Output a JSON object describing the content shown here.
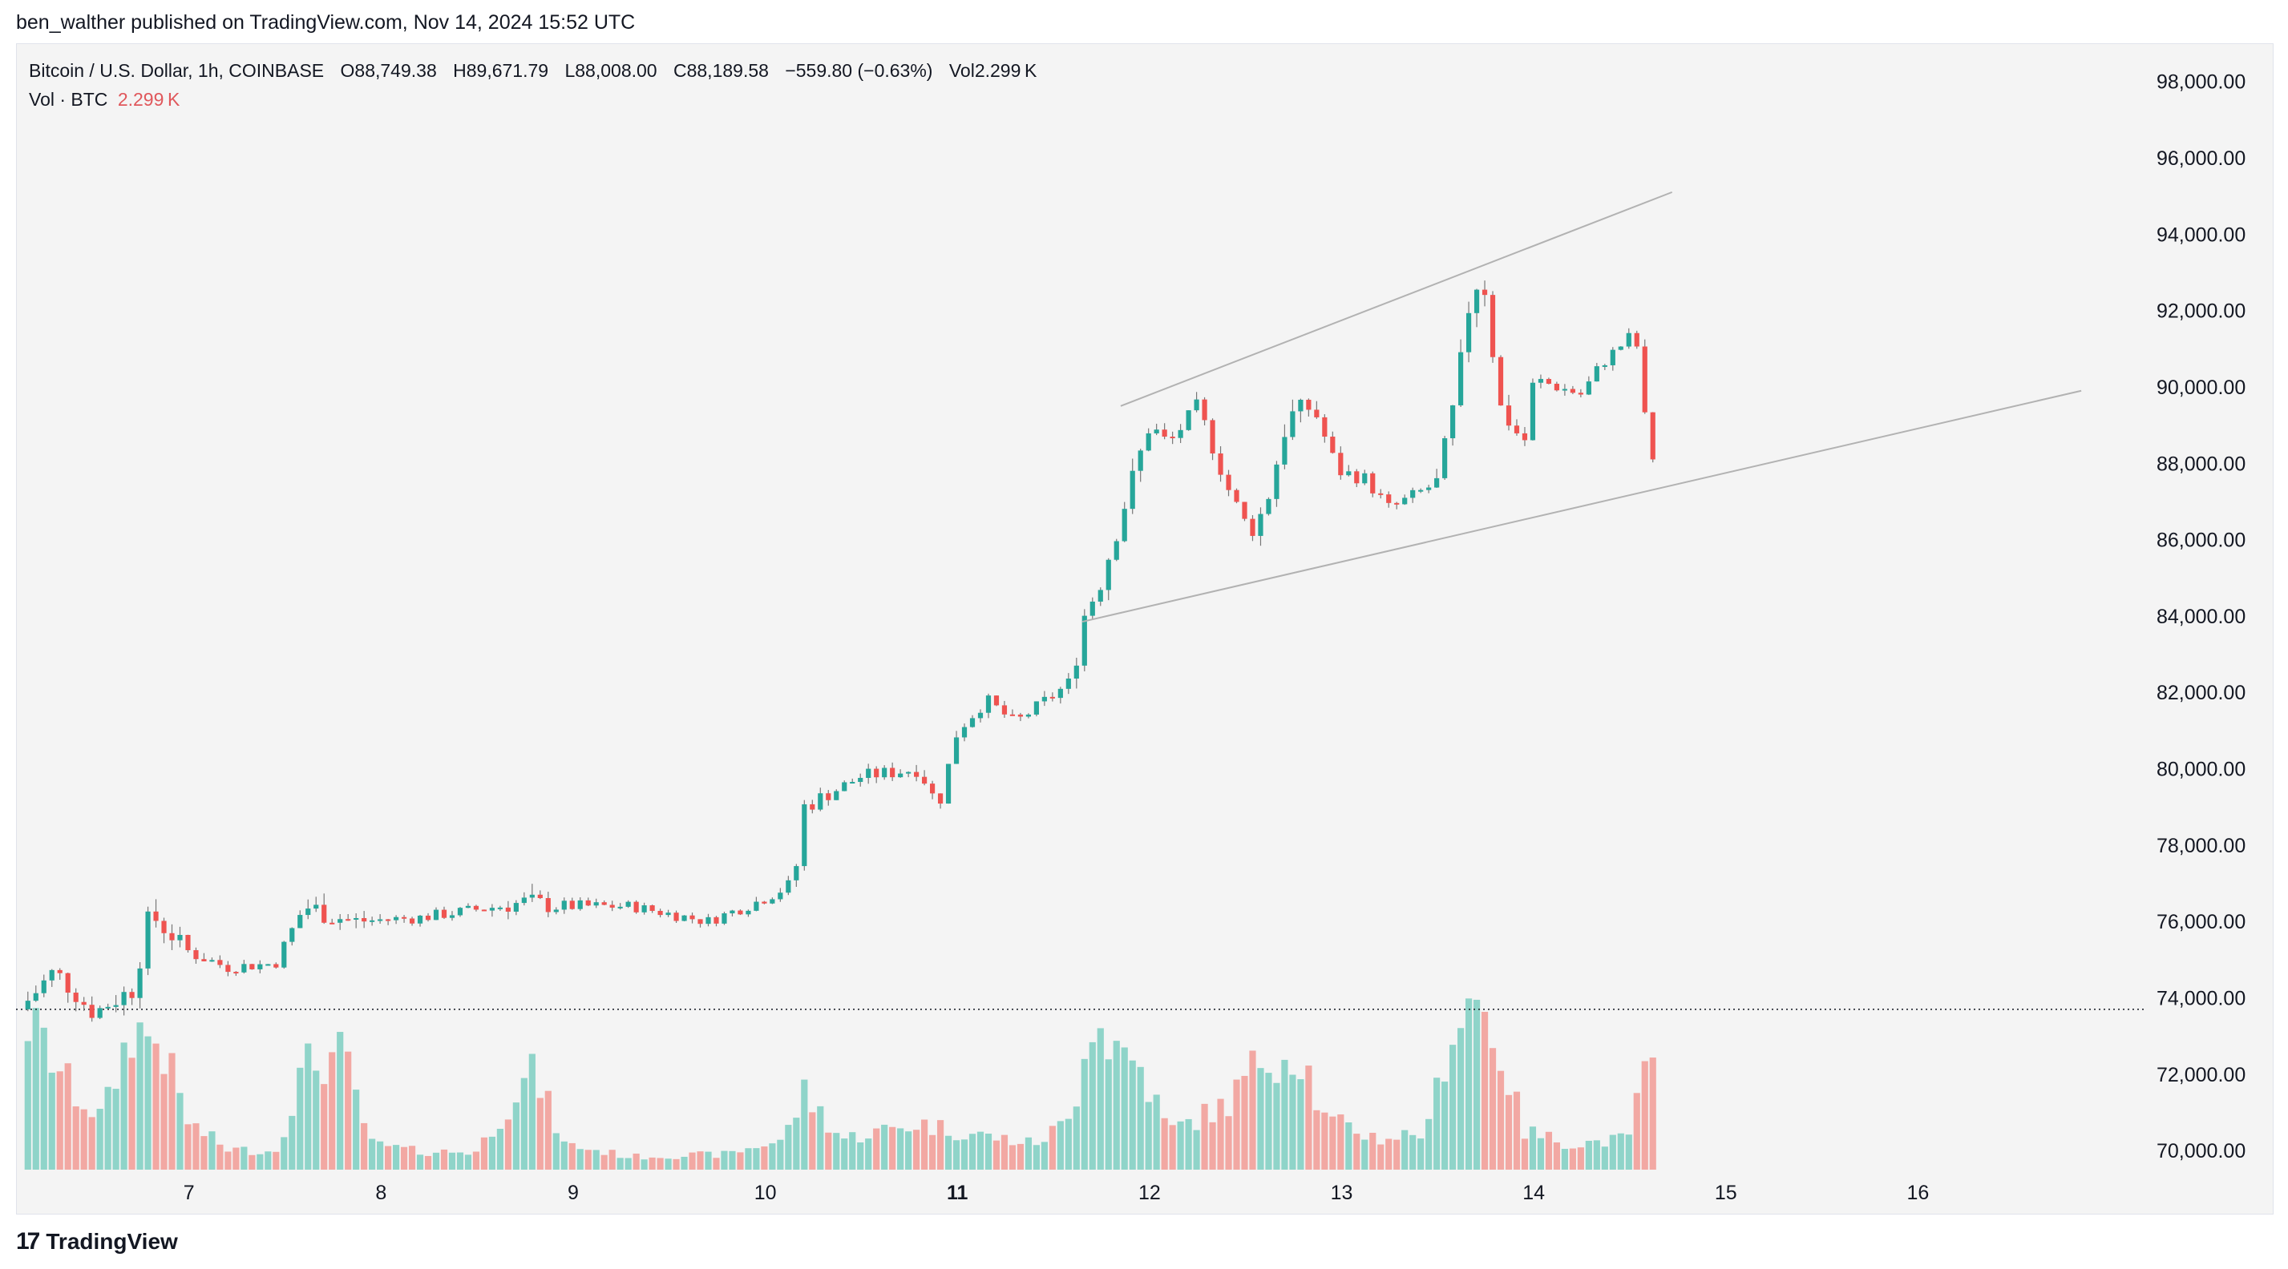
{
  "publisher_line": "ben_walther published on TradingView.com, Nov 14, 2024 15:52 UTC",
  "legend": {
    "symbol": "Bitcoin / U.S. Dollar, 1h, COINBASE",
    "open": "O88,749.38",
    "high": "H89,671.79",
    "low": "L88,008.00",
    "close": "C88,189.58",
    "change": "−559.80 (−0.63%)",
    "vol": "Vol2.299 K",
    "vol_label": "Vol · BTC",
    "vol_value": "2.299 K"
  },
  "footer": {
    "brand": "TradingView",
    "icon": "tradingview-logo-icon"
  },
  "colors": {
    "up": "#26a69a",
    "down": "#ef5350",
    "up_vol": "#8fd4c9",
    "down_vol": "#f2a8a3",
    "trendline": "#b2b2b2"
  },
  "chart_data": {
    "type": "candlestick",
    "title": "Bitcoin / U.S. Dollar, 1h, COINBASE",
    "ylim": [
      69500,
      99000
    ],
    "y_ticks": [
      "98,000.00",
      "96,000.00",
      "94,000.00",
      "92,000.00",
      "90,000.00",
      "88,000.00",
      "86,000.00",
      "84,000.00",
      "82,000.00",
      "80,000.00",
      "78,000.00",
      "76,000.00",
      "74,000.00",
      "72,000.00",
      "70,000.00"
    ],
    "y_tick_values": [
      98000,
      96000,
      94000,
      92000,
      90000,
      88000,
      86000,
      84000,
      82000,
      80000,
      78000,
      76000,
      74000,
      72000,
      70000
    ],
    "x_ticks": [
      "7",
      "8",
      "9",
      "10",
      "11",
      "12",
      "13",
      "14",
      "15",
      "16"
    ],
    "x_tick_positions": [
      7,
      8,
      9,
      10,
      11,
      12,
      13,
      14,
      15,
      16
    ],
    "x_tick_bold": "11",
    "xlim": [
      6.1,
      17.2
    ],
    "price_line": 73700,
    "ohlc_anchors": [
      [
        6.12,
        73700
      ],
      [
        6.3,
        74700
      ],
      [
        6.5,
        73600
      ],
      [
        6.7,
        74200
      ],
      [
        6.8,
        76200
      ],
      [
        7.0,
        75200
      ],
      [
        7.2,
        74800
      ],
      [
        7.45,
        74900
      ],
      [
        7.6,
        76400
      ],
      [
        7.85,
        76000
      ],
      [
        8.2,
        76100
      ],
      [
        8.75,
        76500
      ],
      [
        8.9,
        76400
      ],
      [
        9.3,
        76400
      ],
      [
        9.7,
        76000
      ],
      [
        9.95,
        76500
      ],
      [
        10.15,
        77000
      ],
      [
        10.2,
        79000
      ],
      [
        10.5,
        79800
      ],
      [
        10.8,
        80000
      ],
      [
        10.9,
        79000
      ],
      [
        11.0,
        81000
      ],
      [
        11.15,
        81800
      ],
      [
        11.3,
        81200
      ],
      [
        11.6,
        82300
      ],
      [
        11.65,
        83900
      ],
      [
        11.75,
        85000
      ],
      [
        11.95,
        88200
      ],
      [
        12.0,
        89000
      ],
      [
        12.1,
        88500
      ],
      [
        12.25,
        89500
      ],
      [
        12.42,
        87200
      ],
      [
        12.52,
        86200
      ],
      [
        12.6,
        86800
      ],
      [
        12.72,
        89200
      ],
      [
        12.85,
        89500
      ],
      [
        12.98,
        87800
      ],
      [
        13.12,
        87600
      ],
      [
        13.25,
        86800
      ],
      [
        13.5,
        87500
      ],
      [
        13.6,
        89800
      ],
      [
        13.68,
        92800
      ],
      [
        13.75,
        92600
      ],
      [
        13.82,
        89500
      ],
      [
        13.95,
        88500
      ],
      [
        14.0,
        90200
      ],
      [
        14.25,
        89800
      ],
      [
        14.35,
        90600
      ],
      [
        14.5,
        91300
      ],
      [
        14.55,
        91000
      ],
      [
        14.58,
        89000
      ],
      [
        14.62,
        88190
      ]
    ],
    "volume_profile_anchors": [
      [
        6.12,
        0.62
      ],
      [
        6.25,
        0.48
      ],
      [
        6.4,
        0.3
      ],
      [
        6.55,
        0.2
      ],
      [
        6.7,
        0.55
      ],
      [
        6.85,
        0.5
      ],
      [
        7.0,
        0.18
      ],
      [
        7.2,
        0.08
      ],
      [
        7.45,
        0.07
      ],
      [
        7.6,
        0.4
      ],
      [
        7.8,
        0.45
      ],
      [
        7.95,
        0.1
      ],
      [
        8.2,
        0.07
      ],
      [
        8.5,
        0.07
      ],
      [
        8.7,
        0.3
      ],
      [
        8.8,
        0.38
      ],
      [
        8.95,
        0.1
      ],
      [
        9.3,
        0.05
      ],
      [
        9.8,
        0.06
      ],
      [
        10.1,
        0.12
      ],
      [
        10.2,
        0.3
      ],
      [
        10.4,
        0.12
      ],
      [
        10.8,
        0.18
      ],
      [
        11.0,
        0.15
      ],
      [
        11.4,
        0.1
      ],
      [
        11.6,
        0.2
      ],
      [
        11.68,
        0.62
      ],
      [
        11.8,
        0.5
      ],
      [
        11.95,
        0.4
      ],
      [
        12.1,
        0.15
      ],
      [
        12.4,
        0.25
      ],
      [
        12.6,
        0.45
      ],
      [
        12.8,
        0.45
      ],
      [
        12.9,
        0.2
      ],
      [
        13.2,
        0.12
      ],
      [
        13.45,
        0.15
      ],
      [
        13.55,
        0.5
      ],
      [
        13.68,
        0.7
      ],
      [
        13.8,
        0.52
      ],
      [
        13.95,
        0.15
      ],
      [
        14.2,
        0.1
      ],
      [
        14.5,
        0.12
      ],
      [
        14.55,
        0.38
      ],
      [
        14.62,
        0.37
      ]
    ],
    "trendlines": [
      {
        "name": "upper-channel",
        "points": [
          [
            11.85,
            89500
          ],
          [
            14.72,
            95100
          ]
        ]
      },
      {
        "name": "lower-channel",
        "points": [
          [
            11.65,
            83850
          ],
          [
            16.85,
            89900
          ]
        ]
      }
    ]
  }
}
